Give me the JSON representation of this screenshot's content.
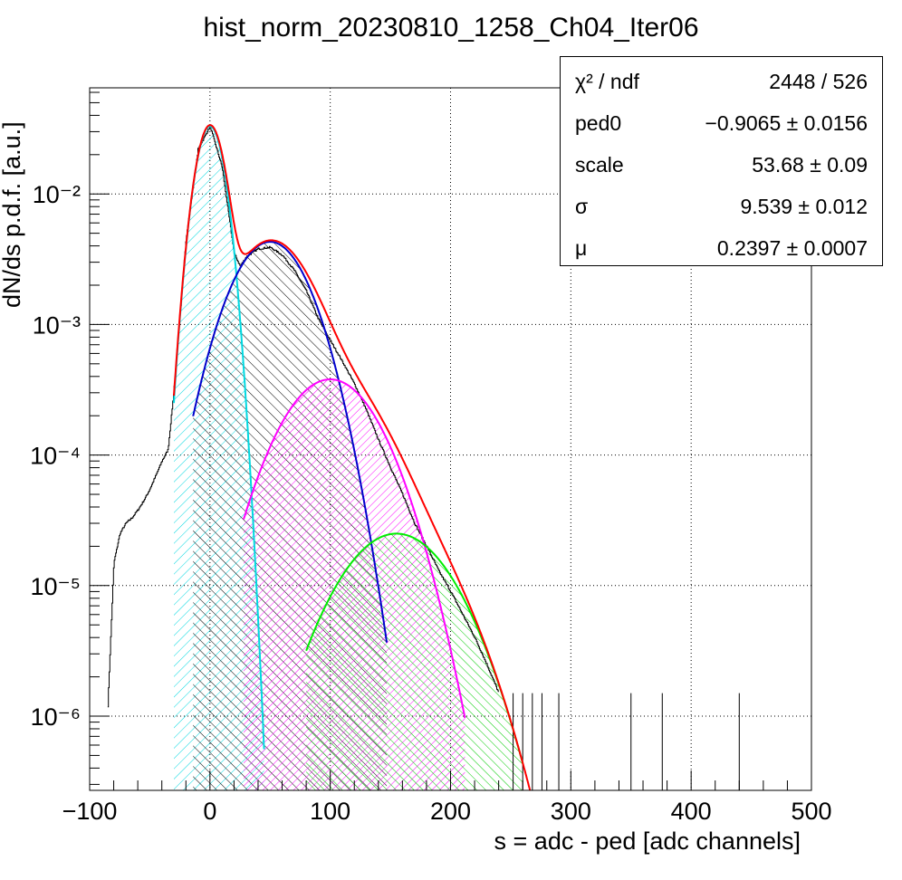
{
  "title": "hist_norm_20230810_1258_Ch04_Iter06",
  "stats": {
    "rows": [
      {
        "key": "χ² / ndf",
        "value": "2448 / 526"
      },
      {
        "key": "ped0",
        "value": "−0.9065 ± 0.0156"
      },
      {
        "key": "scale",
        "value": "53.68 ± 0.09"
      },
      {
        "key": "σ",
        "value": "9.539 ± 0.012"
      },
      {
        "key": "μ",
        "value": "0.2397 ± 0.0007"
      }
    ]
  },
  "chart_data": {
    "type": "line",
    "title": "hist_norm_20230810_1258_Ch04_Iter06",
    "xlabel": "s = adc - ped [adc channels]",
    "ylabel": "dN/ds p.d.f. [a.u.]",
    "xlim": [
      -100,
      500
    ],
    "ylim": [
      2.7e-07,
      0.065
    ],
    "yscale": "log",
    "grid": true,
    "x_ticks": [
      -100,
      0,
      100,
      200,
      300,
      400,
      500
    ],
    "x_tick_labels": [
      "−100",
      "0",
      "100",
      "200",
      "300",
      "400",
      "500"
    ],
    "y_ticks": [
      1e-06,
      1e-05,
      0.0001,
      0.001,
      0.01
    ],
    "y_tick_labels": [
      "10⁻⁶",
      "10⁻⁵",
      "10⁻⁴",
      "10⁻³",
      "10⁻²"
    ],
    "colors": {
      "data": "#000000",
      "total_fit": "#ff0000",
      "pedestal": "#00d8e0",
      "pe1": "#0000cc",
      "pe2": "#ff00ff",
      "pe3": "#00ee00"
    },
    "gaussians": [
      {
        "mu": 0,
        "sigma": 9.6,
        "peak": 0.033,
        "xmin": -30,
        "xmax": 45
      },
      {
        "mu": 50,
        "sigma": 25.8,
        "peak": 0.0043,
        "xmin": -14,
        "xmax": 147
      },
      {
        "mu": 100,
        "sigma": 32.4,
        "peak": 0.00038,
        "xmin": 28,
        "xmax": 212
      },
      {
        "mu": 155,
        "sigma": 36.9,
        "peak": 2.5e-05,
        "xmin": 80,
        "xmax": 260
      }
    ],
    "series": [
      {
        "x": [
          -85,
          -80,
          -75,
          -70,
          -65,
          -60,
          -55,
          -50,
          -45,
          -40,
          -35,
          -30,
          -20,
          -10,
          0,
          10,
          20,
          25,
          30,
          40,
          50,
          60,
          70,
          80,
          90,
          100,
          110,
          120,
          130,
          140,
          150,
          160,
          170,
          180,
          190,
          200,
          210,
          220,
          230,
          240
        ],
        "y": [
          1.2e-06,
          1.5e-05,
          2.5e-05,
          3e-05,
          3.3e-05,
          3.8e-05,
          4.5e-05,
          5.5e-05,
          7e-05,
          9e-05,
          0.00011,
          0.00032,
          0.0045,
          0.022,
          0.033,
          0.016,
          0.0035,
          0.0028,
          0.0033,
          0.0038,
          0.0039,
          0.0034,
          0.0026,
          0.0018,
          0.0011,
          0.00075,
          0.00052,
          0.00035,
          0.00022,
          0.00013,
          8e-05,
          5e-05,
          3e-05,
          2e-05,
          1.3e-05,
          9e-06,
          6e-06,
          4e-06,
          2.5e-06,
          1.5e-06
        ]
      }
    ]
  }
}
